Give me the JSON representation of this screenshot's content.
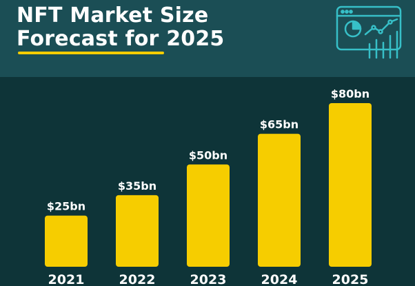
{
  "header": {
    "title_line1": "NFT Market Size",
    "title_line2": "Forecast for 2025"
  },
  "colors": {
    "background": "#0e3438",
    "header_background": "#1b4e55",
    "bar": "#f6cd00",
    "text": "#ffffff",
    "icon": "#37c0c8"
  },
  "icons": {
    "header_icon": "dashboard-analytics-icon"
  },
  "chart_data": {
    "type": "bar",
    "categories": [
      "2021",
      "2022",
      "2023",
      "2024",
      "2025"
    ],
    "values": [
      25,
      35,
      50,
      65,
      80
    ],
    "labels": [
      "$25bn",
      "$35bn",
      "$50bn",
      "$65bn",
      "$80bn"
    ],
    "title": "NFT Market Size Forecast for 2025",
    "xlabel": "",
    "ylabel": "",
    "ylim": [
      0,
      80
    ],
    "grid": false,
    "legend": "none"
  }
}
